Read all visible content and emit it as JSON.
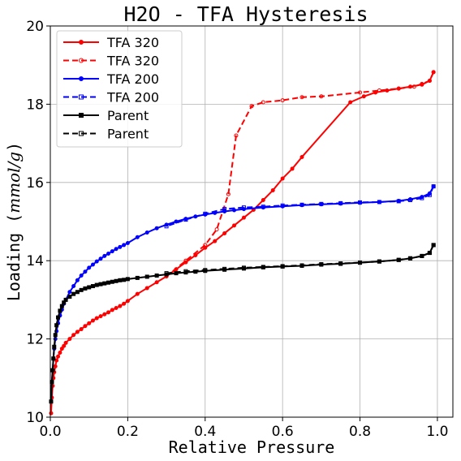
{
  "chart_data": {
    "type": "line",
    "title": "H2O - TFA Hysteresis",
    "xlabel": "Relative Pressure",
    "ylabel_prefix": "Loading (",
    "ylabel_unit": "mmol/g",
    "ylabel_suffix": ")",
    "xlim": [
      0.0,
      1.04
    ],
    "ylim": [
      10,
      20
    ],
    "xticks": [
      "0.0",
      "0.2",
      "0.4",
      "0.6",
      "0.8",
      "1.0"
    ],
    "yticks": [
      "10",
      "12",
      "14",
      "16",
      "18",
      "20"
    ],
    "grid": true,
    "legend_position": "top-left",
    "series": [
      {
        "name": "TFA 320",
        "color": "#ff0000",
        "linestyle": "solid",
        "marker": "filled-circle",
        "x": [
          0.002,
          0.004,
          0.006,
          0.008,
          0.01,
          0.013,
          0.016,
          0.02,
          0.025,
          0.03,
          0.035,
          0.04,
          0.05,
          0.06,
          0.07,
          0.08,
          0.09,
          0.1,
          0.11,
          0.12,
          0.13,
          0.14,
          0.15,
          0.16,
          0.17,
          0.18,
          0.19,
          0.2,
          0.225,
          0.25,
          0.275,
          0.3,
          0.325,
          0.35,
          0.375,
          0.4,
          0.425,
          0.45,
          0.475,
          0.5,
          0.525,
          0.55,
          0.575,
          0.6,
          0.625,
          0.65,
          0.775,
          0.81,
          0.84,
          0.87,
          0.9,
          0.93,
          0.96,
          0.98,
          0.99
        ],
        "y": [
          10.1,
          10.5,
          10.8,
          11.0,
          11.15,
          11.3,
          11.45,
          11.55,
          11.65,
          11.75,
          11.82,
          11.9,
          12.0,
          12.1,
          12.18,
          12.25,
          12.33,
          12.4,
          12.47,
          12.53,
          12.58,
          12.63,
          12.68,
          12.74,
          12.79,
          12.84,
          12.9,
          12.97,
          13.15,
          13.3,
          13.45,
          13.6,
          13.78,
          13.96,
          14.14,
          14.33,
          14.5,
          14.7,
          14.9,
          15.1,
          15.3,
          15.55,
          15.8,
          16.1,
          16.35,
          16.65,
          18.05,
          18.2,
          18.3,
          18.35,
          18.4,
          18.45,
          18.5,
          18.6,
          18.82
        ]
      },
      {
        "name": "TFA 320",
        "color": "#ff0000",
        "linestyle": "dashed",
        "marker": "open-circle",
        "x": [
          0.99,
          0.98,
          0.96,
          0.94,
          0.9,
          0.85,
          0.8,
          0.7,
          0.65,
          0.6,
          0.55,
          0.52,
          0.48,
          0.46,
          0.43,
          0.4,
          0.35,
          0.3
        ],
        "y": [
          18.82,
          18.6,
          18.52,
          18.45,
          18.4,
          18.35,
          18.3,
          18.2,
          18.18,
          18.1,
          18.05,
          17.95,
          17.2,
          15.7,
          14.8,
          14.4,
          14.0,
          13.6
        ]
      },
      {
        "name": "TFA 200",
        "color": "#0000ff",
        "linestyle": "solid",
        "marker": "filled-circle",
        "x": [
          0.002,
          0.004,
          0.006,
          0.008,
          0.01,
          0.013,
          0.016,
          0.02,
          0.025,
          0.03,
          0.035,
          0.04,
          0.05,
          0.06,
          0.07,
          0.08,
          0.09,
          0.1,
          0.11,
          0.12,
          0.13,
          0.14,
          0.15,
          0.16,
          0.17,
          0.18,
          0.19,
          0.2,
          0.225,
          0.25,
          0.275,
          0.3,
          0.325,
          0.35,
          0.375,
          0.4,
          0.425,
          0.45,
          0.475,
          0.5,
          0.55,
          0.6,
          0.65,
          0.7,
          0.75,
          0.8,
          0.85,
          0.9,
          0.93,
          0.96,
          0.98,
          0.99
        ],
        "y": [
          10.4,
          10.9,
          11.2,
          11.5,
          11.75,
          12.0,
          12.2,
          12.4,
          12.6,
          12.75,
          12.9,
          13.0,
          13.2,
          13.35,
          13.5,
          13.62,
          13.72,
          13.82,
          13.9,
          13.98,
          14.05,
          14.12,
          14.18,
          14.24,
          14.3,
          14.35,
          14.4,
          14.45,
          14.6,
          14.72,
          14.83,
          14.92,
          15.0,
          15.07,
          15.13,
          15.18,
          15.22,
          15.26,
          15.29,
          15.32,
          15.36,
          15.39,
          15.42,
          15.44,
          15.46,
          15.48,
          15.5,
          15.53,
          15.57,
          15.63,
          15.72,
          15.9
        ]
      },
      {
        "name": "TFA 200",
        "color": "#0000ff",
        "linestyle": "dashed",
        "marker": "open-square",
        "x": [
          0.99,
          0.98,
          0.96,
          0.93,
          0.9,
          0.85,
          0.8,
          0.75,
          0.7,
          0.65,
          0.6,
          0.55,
          0.5,
          0.45,
          0.4,
          0.35,
          0.3
        ],
        "y": [
          15.9,
          15.68,
          15.6,
          15.55,
          15.52,
          15.5,
          15.49,
          15.47,
          15.45,
          15.43,
          15.41,
          15.38,
          15.36,
          15.32,
          15.2,
          15.05,
          14.88
        ]
      },
      {
        "name": "Parent",
        "color": "#000000",
        "linestyle": "solid",
        "marker": "filled-square",
        "x": [
          0.002,
          0.004,
          0.006,
          0.008,
          0.01,
          0.013,
          0.016,
          0.02,
          0.025,
          0.03,
          0.035,
          0.04,
          0.05,
          0.06,
          0.07,
          0.08,
          0.09,
          0.1,
          0.11,
          0.12,
          0.13,
          0.14,
          0.15,
          0.16,
          0.17,
          0.18,
          0.19,
          0.2,
          0.225,
          0.25,
          0.275,
          0.3,
          0.325,
          0.35,
          0.375,
          0.4,
          0.45,
          0.5,
          0.55,
          0.6,
          0.65,
          0.7,
          0.75,
          0.8,
          0.85,
          0.9,
          0.93,
          0.96,
          0.98,
          0.99
        ],
        "y": [
          10.4,
          10.9,
          11.2,
          11.5,
          11.8,
          12.1,
          12.35,
          12.55,
          12.72,
          12.84,
          12.93,
          13.0,
          13.08,
          13.15,
          13.2,
          13.25,
          13.29,
          13.32,
          13.35,
          13.38,
          13.4,
          13.42,
          13.44,
          13.46,
          13.48,
          13.5,
          13.51,
          13.53,
          13.56,
          13.59,
          13.62,
          13.65,
          13.68,
          13.7,
          13.72,
          13.74,
          13.77,
          13.8,
          13.83,
          13.85,
          13.87,
          13.9,
          13.92,
          13.95,
          13.98,
          14.02,
          14.06,
          14.12,
          14.2,
          14.4
        ]
      },
      {
        "name": "Parent",
        "color": "#000000",
        "linestyle": "dashed",
        "marker": "open-square",
        "x": [
          0.99,
          0.98,
          0.96,
          0.93,
          0.9,
          0.85,
          0.8,
          0.75,
          0.7,
          0.65,
          0.6,
          0.55,
          0.5,
          0.45,
          0.4,
          0.35,
          0.3
        ],
        "y": [
          14.4,
          14.2,
          14.12,
          14.06,
          14.02,
          13.98,
          13.95,
          13.93,
          13.91,
          13.88,
          13.86,
          13.84,
          13.82,
          13.79,
          13.76,
          13.73,
          13.68
        ]
      }
    ]
  }
}
